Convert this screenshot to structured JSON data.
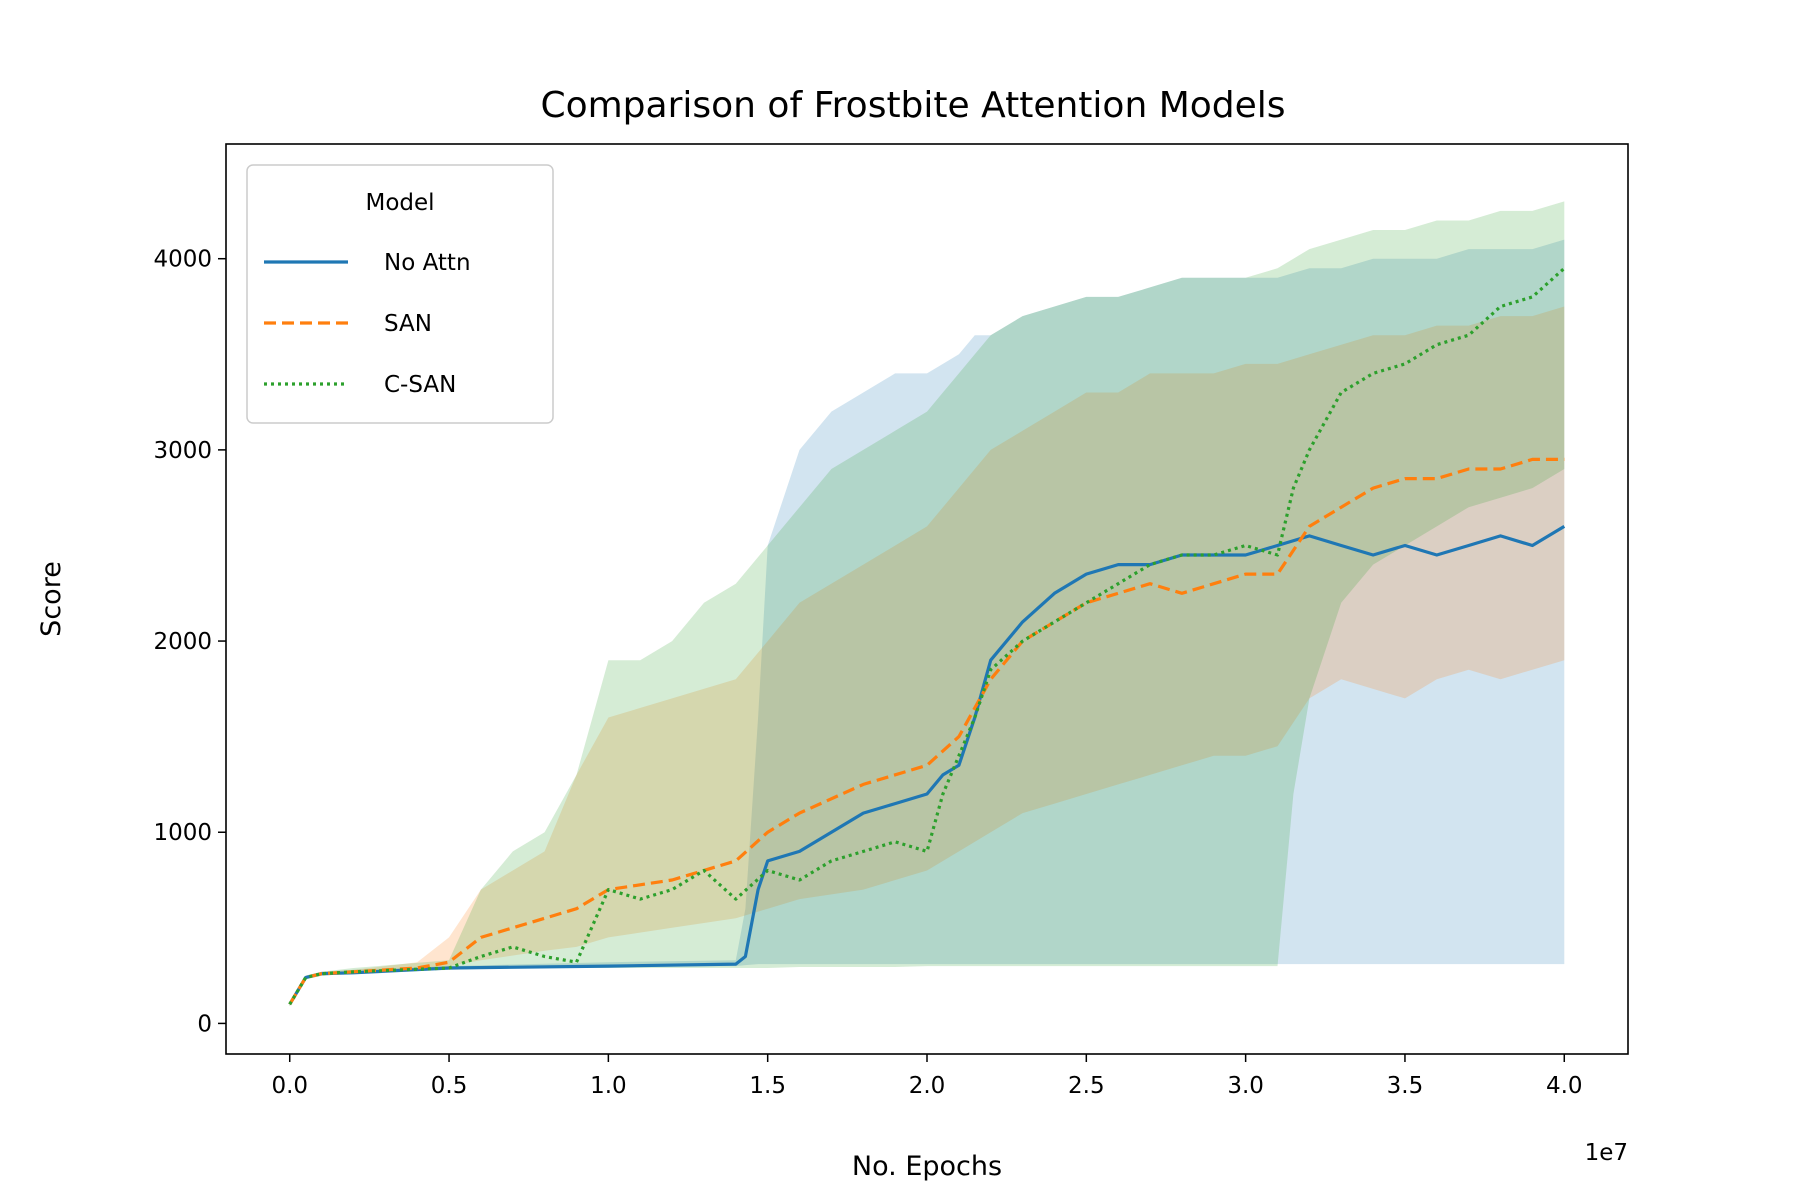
{
  "chart_data": {
    "type": "line",
    "title": "Comparison of Frostbite Attention Models",
    "xlabel": "No. Epochs",
    "ylabel": "Score",
    "x_offset_label": "1e7",
    "xlim": [
      -0.2,
      4.2
    ],
    "ylim": [
      -160,
      4600
    ],
    "xticks": [
      0.0,
      0.5,
      1.0,
      1.5,
      2.0,
      2.5,
      3.0,
      3.5,
      4.0
    ],
    "xtick_labels": [
      "0.0",
      "0.5",
      "1.0",
      "1.5",
      "2.0",
      "2.5",
      "3.0",
      "3.5",
      "4.0"
    ],
    "yticks": [
      0,
      1000,
      2000,
      3000,
      4000
    ],
    "ytick_labels": [
      "0",
      "1000",
      "2000",
      "3000",
      "4000"
    ],
    "grid": false,
    "legend": {
      "title": "Model",
      "placement": "upper-left"
    },
    "series": [
      {
        "name": "No Attn",
        "color": "#1f77b4",
        "dash": "solid",
        "x": [
          0.0,
          0.05,
          0.1,
          0.2,
          0.5,
          1.0,
          1.4,
          1.43,
          1.47,
          1.5,
          1.6,
          1.7,
          1.8,
          1.9,
          2.0,
          2.05,
          2.1,
          2.15,
          2.2,
          2.3,
          2.4,
          2.5,
          2.6,
          2.7,
          2.8,
          2.9,
          3.0,
          3.1,
          3.2,
          3.3,
          3.4,
          3.5,
          3.6,
          3.7,
          3.8,
          3.9,
          4.0
        ],
        "y": [
          100,
          240,
          260,
          265,
          290,
          300,
          310,
          350,
          700,
          850,
          900,
          1000,
          1100,
          1150,
          1200,
          1300,
          1350,
          1600,
          1900,
          2100,
          2250,
          2350,
          2400,
          2400,
          2450,
          2450,
          2450,
          2500,
          2550,
          2500,
          2450,
          2500,
          2450,
          2500,
          2550,
          2500,
          2600
        ],
        "y_lo": [
          90,
          230,
          250,
          260,
          285,
          295,
          300,
          305,
          310,
          310,
          310,
          310,
          310,
          310,
          310,
          310,
          310,
          310,
          310,
          310,
          310,
          310,
          310,
          310,
          310,
          310,
          310,
          310,
          310,
          310,
          310,
          310,
          310,
          310,
          310,
          310,
          310
        ],
        "y_hi": [
          110,
          250,
          270,
          280,
          300,
          320,
          330,
          600,
          1600,
          2500,
          3000,
          3200,
          3300,
          3400,
          3400,
          3450,
          3500,
          3600,
          3600,
          3700,
          3750,
          3800,
          3800,
          3850,
          3900,
          3900,
          3900,
          3900,
          3950,
          3950,
          4000,
          4000,
          4000,
          4050,
          4050,
          4050,
          4100
        ]
      },
      {
        "name": "SAN",
        "color": "#ff7f0e",
        "dash": "dashed",
        "x": [
          0.0,
          0.05,
          0.1,
          0.2,
          0.4,
          0.5,
          0.6,
          0.8,
          0.9,
          1.0,
          1.2,
          1.4,
          1.5,
          1.6,
          1.8,
          2.0,
          2.1,
          2.2,
          2.3,
          2.4,
          2.5,
          2.6,
          2.7,
          2.8,
          2.9,
          3.0,
          3.1,
          3.2,
          3.3,
          3.4,
          3.5,
          3.6,
          3.7,
          3.8,
          3.9,
          4.0
        ],
        "y": [
          100,
          240,
          260,
          270,
          290,
          320,
          450,
          550,
          600,
          700,
          750,
          850,
          1000,
          1100,
          1250,
          1350,
          1500,
          1800,
          2000,
          2100,
          2200,
          2250,
          2300,
          2250,
          2300,
          2350,
          2350,
          2600,
          2700,
          2800,
          2850,
          2850,
          2900,
          2900,
          2950,
          2950
        ],
        "y_lo": [
          90,
          230,
          250,
          260,
          280,
          300,
          330,
          380,
          400,
          450,
          500,
          550,
          600,
          650,
          700,
          800,
          900,
          1000,
          1100,
          1150,
          1200,
          1250,
          1300,
          1350,
          1400,
          1400,
          1450,
          1700,
          1800,
          1750,
          1700,
          1800,
          1850,
          1800,
          1850,
          1900
        ],
        "y_hi": [
          110,
          250,
          270,
          280,
          320,
          450,
          700,
          900,
          1300,
          1600,
          1700,
          1800,
          2000,
          2200,
          2400,
          2600,
          2800,
          3000,
          3100,
          3200,
          3300,
          3300,
          3400,
          3400,
          3400,
          3450,
          3450,
          3500,
          3550,
          3600,
          3600,
          3650,
          3650,
          3700,
          3700,
          3750
        ]
      },
      {
        "name": "C-SAN",
        "color": "#2ca02c",
        "dash": "dotted",
        "x": [
          0.0,
          0.05,
          0.1,
          0.2,
          0.5,
          0.6,
          0.7,
          0.8,
          0.9,
          1.0,
          1.1,
          1.2,
          1.3,
          1.4,
          1.5,
          1.6,
          1.7,
          1.8,
          1.9,
          2.0,
          2.05,
          2.1,
          2.15,
          2.2,
          2.3,
          2.4,
          2.5,
          2.6,
          2.7,
          2.8,
          2.9,
          3.0,
          3.1,
          3.15,
          3.2,
          3.3,
          3.4,
          3.5,
          3.6,
          3.7,
          3.8,
          3.9,
          4.0
        ],
        "y": [
          100,
          240,
          260,
          270,
          290,
          350,
          400,
          350,
          320,
          700,
          650,
          700,
          800,
          650,
          800,
          750,
          850,
          900,
          950,
          900,
          1200,
          1400,
          1600,
          1850,
          2000,
          2100,
          2200,
          2300,
          2400,
          2450,
          2450,
          2500,
          2450,
          2800,
          3000,
          3300,
          3400,
          3450,
          3550,
          3600,
          3750,
          3800,
          3950
        ],
        "y_lo": [
          90,
          230,
          250,
          260,
          280,
          285,
          290,
          290,
          290,
          290,
          290,
          290,
          290,
          290,
          290,
          295,
          295,
          295,
          295,
          300,
          300,
          300,
          300,
          300,
          300,
          300,
          300,
          300,
          300,
          300,
          300,
          300,
          300,
          1200,
          1700,
          2200,
          2400,
          2500,
          2600,
          2700,
          2750,
          2800,
          2900
        ],
        "y_hi": [
          110,
          250,
          270,
          290,
          330,
          700,
          900,
          1000,
          1300,
          1900,
          1900,
          2000,
          2200,
          2300,
          2500,
          2700,
          2900,
          3000,
          3100,
          3200,
          3300,
          3400,
          3500,
          3600,
          3700,
          3750,
          3800,
          3800,
          3850,
          3900,
          3900,
          3900,
          3950,
          4000,
          4050,
          4100,
          4150,
          4150,
          4200,
          4200,
          4250,
          4250,
          4300
        ]
      }
    ]
  }
}
